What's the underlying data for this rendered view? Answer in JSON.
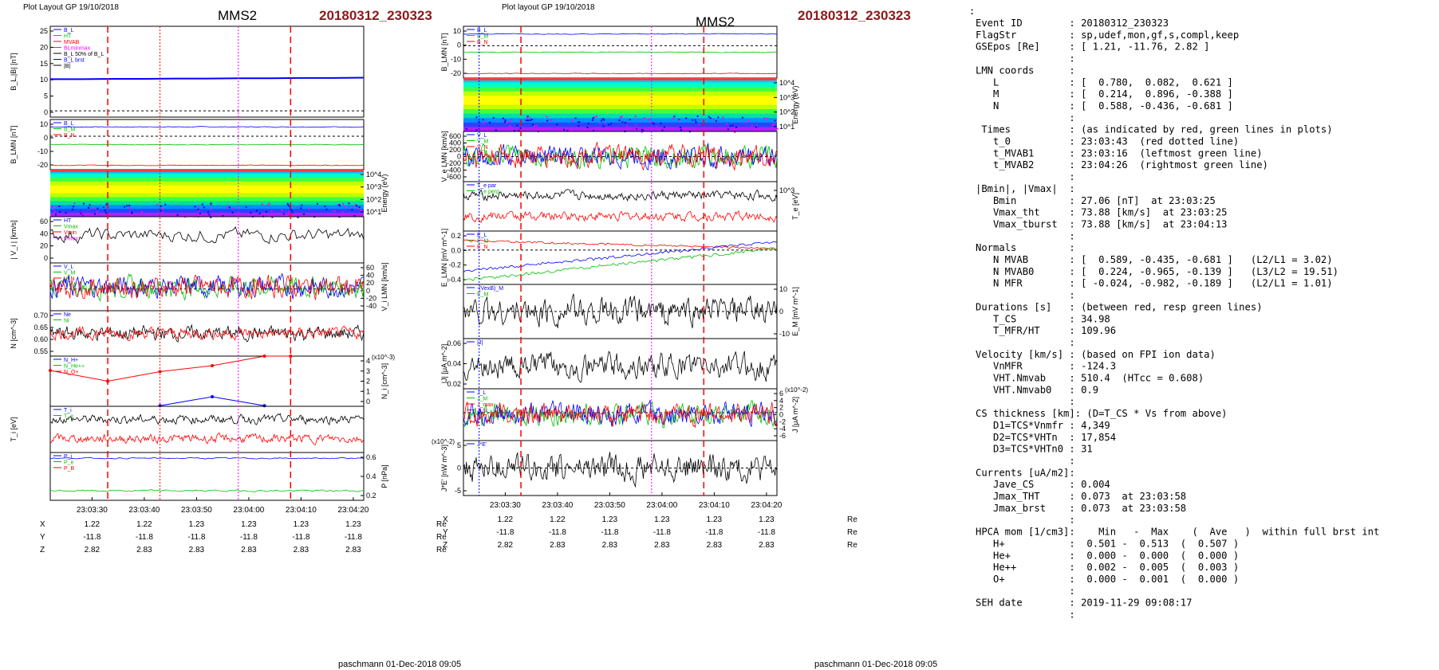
{
  "header": {
    "left_layout_label": "Plot Layout GP 19/10/2018",
    "right_layout_label": "Plot layout GP 19/10/2018",
    "spacecraft": "MMS2",
    "event_id": "20180312_230323",
    "left_footer": "paschmann 01-Dec-2018 09:05",
    "right_footer": "paschmann 01-Dec-2018 09:05"
  },
  "colors": {
    "event": "#8b1a1a",
    "red": "#ff0000",
    "blue": "#0000ff",
    "green": "#00c000",
    "magenta": "#ff00ff",
    "black": "#000000",
    "gray": "#a0a0a0"
  },
  "time_axis": {
    "ticks": [
      "23:03:30",
      "23:03:40",
      "23:03:50",
      "23:04:00",
      "23:04:10",
      "23:04:20"
    ]
  },
  "orbit_table": {
    "rows": [
      {
        "label": "X",
        "values": [
          "1.22",
          "1.22",
          "1.23",
          "1.23",
          "1.23",
          "1.23"
        ],
        "unit": "Re"
      },
      {
        "label": "Y",
        "values": [
          "-11.8",
          "-11.8",
          "-11.8",
          "-11.8",
          "-11.8",
          "-11.8"
        ],
        "unit": "Re"
      },
      {
        "label": "Z",
        "values": [
          "2.82",
          "2.83",
          "2.83",
          "2.83",
          "2.83",
          "2.83"
        ],
        "unit": "Re"
      }
    ]
  },
  "chart_data": [
    {
      "id": "left",
      "type": "line",
      "x_range": [
        "23:03:22",
        "23:04:22"
      ],
      "vertical_markers": [
        {
          "time": "23:03:33",
          "color": "red",
          "style": "dashed"
        },
        {
          "time": "23:03:43",
          "color": "red",
          "style": "dotted"
        },
        {
          "time": "23:03:58",
          "color": "magenta",
          "style": "dotted"
        },
        {
          "time": "23:04:08",
          "color": "red",
          "style": "dashed"
        }
      ],
      "panels": [
        {
          "key": "b",
          "ylabel": "B_L,|B| [nT]",
          "ylim": [
            -2,
            27
          ],
          "yticks": [
            "25",
            "20",
            "15",
            "10",
            "5",
            "0"
          ],
          "legend": [
            "B_L",
            "HT",
            "MVAB",
            "BLminmax",
            "B_L 50% of B_L",
            "B_L brst",
            "|B|"
          ],
          "series": [
            {
              "name": "B_L",
              "color": "blue",
              "values": [
                10.1,
                10.1,
                10.2,
                10.2,
                10.3,
                10.3,
                10.4,
                10.4,
                10.5,
                10.5,
                10.6
              ]
            }
          ]
        },
        {
          "key": "blmn",
          "ylabel": "B_LMN [nT]",
          "ylim": [
            -20,
            10
          ],
          "yticks": [
            "10",
            "0",
            "-10",
            "-20"
          ],
          "legend": [
            "B_L",
            "B_M",
            "B_N"
          ]
        },
        {
          "key": "spec",
          "ylabel": "Energy (eV)",
          "yticks": [
            "10^4",
            "10^3",
            "10^2",
            "10^1"
          ]
        },
        {
          "key": "vi",
          "ylabel": "| V_i | [km/s]",
          "ylim": [
            0,
            75
          ],
          "yticks": [
            "60",
            "40",
            "20",
            "0"
          ],
          "legend": [
            "HT",
            "Vmax",
            "Vmin",
            "Vmax"
          ]
        },
        {
          "key": "vilmn",
          "ylabel": "V_i LMN [km/s]",
          "ylim": [
            -50,
            60
          ],
          "yticks": [
            "60",
            "40",
            "20",
            "0",
            "-20",
            "-40"
          ],
          "legend": [
            "V_L",
            "V_M",
            "V_N"
          ]
        },
        {
          "key": "n",
          "ylabel": "N [cm^-3]",
          "ylim": [
            0.53,
            0.72
          ],
          "yticks": [
            "0.70",
            "0.65",
            "0.60",
            "0.55"
          ],
          "legend": [
            "Ne",
            "Ni"
          ]
        },
        {
          "key": "nhpca",
          "ylabel": "N_i [cm^-3]",
          "yscale": "x10^-3",
          "ylim": [
            0,
            4.2
          ],
          "yticks": [
            "4",
            "3",
            "2",
            "1",
            "0"
          ],
          "legend": [
            "N_H+",
            "N_He++",
            "N_O+"
          ],
          "series": [
            {
              "name": "N_He++",
              "color": "red",
              "times": [
                "23:03:22",
                "23:03:33",
                "23:03:43",
                "23:03:53",
                "23:04:03",
                "23:04:08"
              ],
              "values": [
                3.0,
                2.1,
                2.9,
                3.4,
                4.3,
                4.6
              ]
            },
            {
              "name": "N_O+",
              "color": "blue",
              "times": [
                "23:03:43",
                "23:03:53",
                "23:04:03"
              ],
              "values": [
                0.05,
                0.8,
                0.05
              ]
            }
          ]
        },
        {
          "key": "ti",
          "ylabel": "T_i [eV]",
          "legend": [
            "T_i",
            "T_e"
          ]
        },
        {
          "key": "p",
          "ylabel": "P [nPa]",
          "ylim": [
            0.15,
            0.65
          ],
          "yticks": [
            "0.6",
            "0.4",
            "0.2"
          ],
          "legend": [
            "P_i",
            "P_e",
            "P_B"
          ]
        }
      ]
    },
    {
      "id": "right",
      "type": "line",
      "x_range": [
        "23:03:22",
        "23:04:22"
      ],
      "vertical_markers": [
        {
          "time": "23:03:25",
          "color": "blue",
          "style": "dotted"
        },
        {
          "time": "23:03:33",
          "color": "red",
          "style": "dashed"
        },
        {
          "time": "23:03:58",
          "color": "magenta",
          "style": "dotted"
        },
        {
          "time": "23:04:08",
          "color": "red",
          "style": "dashed"
        }
      ],
      "panels": [
        {
          "key": "blmn",
          "ylabel": "B_LMN [nT]",
          "ylim": [
            -20,
            12
          ],
          "yticks": [
            "10",
            "0",
            "-10",
            "-20"
          ],
          "legend": [
            "B_L",
            "B_M",
            "B_N"
          ]
        },
        {
          "key": "spec",
          "ylabel": "Energy (eV)",
          "yticks": [
            "10^4",
            "10^3",
            "10^2",
            "10^1"
          ]
        },
        {
          "key": "ve",
          "ylabel": "V_e LMN [km/s]",
          "ylim": [
            -700,
            700
          ],
          "yticks": [
            "600",
            "400",
            "200",
            "0",
            "-200",
            "-400",
            "-600"
          ],
          "legend": [
            "V_L",
            "V_M",
            "V_N"
          ]
        },
        {
          "key": "te",
          "ylabel": "T_e [eV]",
          "yticks": [
            "10^3"
          ],
          "legend": [
            "T_e par",
            "T_e perp"
          ]
        },
        {
          "key": "e",
          "ylabel": "E_LMN [mV m^-1]",
          "ylim": [
            -0.45,
            0.25
          ],
          "yticks": [
            "0.2",
            "0.0",
            "-0.2",
            "-0.4"
          ],
          "legend": [
            "E_L",
            "E_M",
            "E_N"
          ]
        },
        {
          "key": "em",
          "ylabel": "E_M [mV m^-1]",
          "ylim": [
            -15,
            15
          ],
          "yticks": [
            "10",
            "0",
            "-10"
          ],
          "legend": [
            "-(VexB)_M",
            "E_M"
          ]
        },
        {
          "key": "j",
          "ylabel": "|J| [μA m^-2]",
          "ylim": [
            0.005,
            0.07
          ],
          "yticks": [
            "0.06",
            "0.04",
            "0.02"
          ],
          "legend": [
            "|J|"
          ]
        },
        {
          "key": "jlmn",
          "ylabel": "J [μA m^-2]",
          "yscale": "x10^-2",
          "ylim": [
            -7,
            6
          ],
          "yticks": [
            "6",
            "4",
            "2",
            "0",
            "-2",
            "-4",
            "-6"
          ],
          "legend": [
            "J_L",
            "J_M",
            "J_max",
            "J_N"
          ]
        },
        {
          "key": "je",
          "ylabel": "J*E' [nW m^-3]",
          "yscale": "x10^-2",
          "ylim": [
            -7,
            7
          ],
          "yticks": [
            "5",
            "0",
            "-5"
          ],
          "legend": [
            "J*E'"
          ]
        }
      ]
    }
  ],
  "info": {
    "top_colon": ":",
    "lines": [
      "Event ID        : 20180312_230323",
      "FlagStr         : sp,udef,mon,gf,s,compl,keep",
      "GSEpos [Re]     : [ 1.21, -11.76, 2.82 ]",
      "                :",
      "LMN coords      :",
      "   L            : [  0.780,  0.082,  0.621 ]",
      "   M            : [  0.214,  0.896, -0.388 ]",
      "   N            : [  0.588, -0.436, -0.681 ]",
      "                :",
      " Times          : (as indicated by red, green lines in plots)",
      "   t_0          : 23:03:43  (red dotted line)",
      "   t_MVAB1      : 23:03:16  (leftmost green line)",
      "   t_MVAB2      : 23:04:26  (rightmost green line)",
      "                :",
      "|Bmin|, |Vmax|  :",
      "   Bmin         : 27.06 [nT]  at 23:03:25",
      "   Vmax_tht     : 73.88 [km/s]  at 23:03:25",
      "   Vmax_tburst  : 73.88 [km/s]  at 23:04:13",
      "                :",
      "Normals         :",
      "   N MVAB       : [  0.589, -0.435, -0.681 ]   (L2/L1 = 3.02)",
      "   N MVAB0      : [  0.224, -0.965, -0.139 ]   (L3/L2 = 19.51)",
      "   N MFR        : [ -0.024, -0.982, -0.189 ]   (L2/L1 = 1.01)",
      "                :",
      "Durations [s]   : (between red, resp green lines)",
      "   T_CS         : 34.98",
      "   T_MFR/HT     : 109.96",
      "                :",
      "Velocity [km/s] : (based on FPI ion data)",
      "   VnMFR        : -124.3",
      "   VHT.Nmvab    : 510.4  (HTcc = 0.608)",
      "   VHT.Nmvab0   : 0.9",
      "                :",
      "CS thickness [km]: (D=T_CS * Vs from above)",
      "   D1=TCS*Vnmfr : 4,349",
      "   D2=TCS*VHTn  : 17,854",
      "   D3=TCS*VHTn0 : 31",
      "                :",
      "Currents [uA/m2]:",
      "   Jave_CS      : 0.004",
      "   Jmax_THT     : 0.073  at 23:03:58",
      "   Jmax_brst    : 0.073  at 23:03:58",
      "                :",
      "HPCA mom [1/cm3]:    Min   -  Max    (  Ave   )  within full brst int",
      "   H+           :  0.501 -  0.513  (  0.507 )",
      "   He+          :  0.000 -  0.000  (  0.000 )",
      "   He++         :  0.002 -  0.005  (  0.003 )",
      "   O+           :  0.000 -  0.001  (  0.000 )",
      "                :",
      "SEH date        : 2019-11-29 09:08:17",
      "                :"
    ]
  }
}
